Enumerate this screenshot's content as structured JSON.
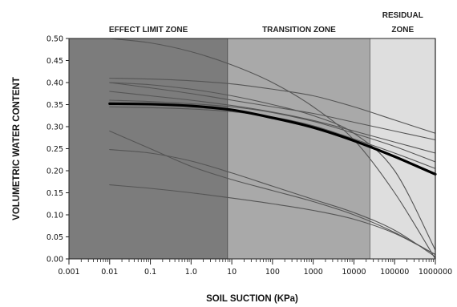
{
  "chart_data": {
    "type": "line",
    "xscale": "log",
    "xlim": [
      0.001,
      1000000
    ],
    "ylim": [
      0.0,
      0.5
    ],
    "xlabel": "SOIL SUCTION (KPa)",
    "ylabel": "VOLUMETRIC WATER CONTENT",
    "x_tick_labels": [
      "0.001",
      "0.01",
      "0.1",
      "1.0",
      "10",
      "100",
      "1000",
      "10000",
      "100000",
      "1000000"
    ],
    "x_ticks": [
      0.001,
      0.01,
      0.1,
      1,
      10,
      100,
      1000,
      10000,
      100000,
      1000000
    ],
    "y_tick_labels": [
      "0.00",
      "0.05",
      "0.10",
      "0.15",
      "0.20",
      "0.25",
      "0.30",
      "0.35",
      "0.40",
      "0.45",
      "0.50"
    ],
    "y_ticks": [
      0,
      0.05,
      0.1,
      0.15,
      0.2,
      0.25,
      0.3,
      0.35,
      0.4,
      0.45,
      0.5
    ],
    "zones": [
      {
        "label": "EFFECT LIMIT ZONE",
        "x_from": 0.001,
        "x_to": 8,
        "color": "#7c7c7c"
      },
      {
        "label": "TRANSITION ZONE",
        "x_from": 8,
        "x_to": 25000,
        "color": "#a9a9a9"
      },
      {
        "label": "RESIDUAL ZONE",
        "x_from": 25000,
        "x_to": 1000000,
        "color": "#dedede"
      }
    ],
    "series": [
      {
        "x": [
          0.01,
          0.1,
          1,
          10,
          100,
          1000,
          10000,
          100000,
          1000000
        ],
        "y": [
          0.352,
          0.351,
          0.347,
          0.338,
          0.32,
          0.298,
          0.268,
          0.232,
          0.192
        ],
        "color": "#000000",
        "width": 3.2
      },
      {
        "x": [
          0.01,
          0.1,
          1,
          10,
          100,
          1000,
          10000,
          100000,
          1000000
        ],
        "y": [
          0.5,
          0.49,
          0.47,
          0.44,
          0.4,
          0.345,
          0.27,
          0.15,
          0.0
        ],
        "color": "#555555",
        "width": 1.1
      },
      {
        "x": [
          0.01,
          0.1,
          1,
          10,
          100,
          1000,
          10000,
          100000,
          1000000
        ],
        "y": [
          0.41,
          0.408,
          0.404,
          0.397,
          0.385,
          0.37,
          0.345,
          0.315,
          0.285
        ],
        "color": "#555555",
        "width": 1.1
      },
      {
        "x": [
          0.01,
          0.1,
          1,
          10,
          100,
          1000,
          10000,
          100000,
          1000000
        ],
        "y": [
          0.4,
          0.388,
          0.375,
          0.36,
          0.345,
          0.33,
          0.31,
          0.29,
          0.27
        ],
        "color": "#555555",
        "width": 1.1
      },
      {
        "x": [
          0.01,
          0.1,
          1,
          10,
          100,
          1000,
          10000,
          100000,
          1000000
        ],
        "y": [
          0.36,
          0.357,
          0.352,
          0.345,
          0.332,
          0.312,
          0.285,
          0.255,
          0.22
        ],
        "color": "#555555",
        "width": 1.1
      },
      {
        "x": [
          0.01,
          0.1,
          1,
          10,
          100,
          1000,
          10000,
          100000,
          1000000
        ],
        "y": [
          0.345,
          0.343,
          0.34,
          0.334,
          0.322,
          0.302,
          0.272,
          0.24,
          0.205
        ],
        "color": "#555555",
        "width": 1.1
      },
      {
        "x": [
          0.01,
          0.1,
          1,
          10,
          100,
          1000,
          10000,
          100000,
          1000000
        ],
        "y": [
          0.38,
          0.37,
          0.36,
          0.348,
          0.333,
          0.314,
          0.29,
          0.265,
          0.24
        ],
        "color": "#555555",
        "width": 1.1
      },
      {
        "x": [
          0.01,
          0.1,
          1,
          10,
          100,
          1000,
          10000,
          100000,
          1000000
        ],
        "y": [
          0.29,
          0.25,
          0.21,
          0.18,
          0.155,
          0.13,
          0.1,
          0.06,
          0.01
        ],
        "color": "#555555",
        "width": 1.1
      },
      {
        "x": [
          0.01,
          0.1,
          1,
          10,
          100,
          1000,
          10000,
          100000,
          1000000
        ],
        "y": [
          0.248,
          0.24,
          0.222,
          0.195,
          0.165,
          0.135,
          0.105,
          0.065,
          0.005
        ],
        "color": "#555555",
        "width": 1.1
      },
      {
        "x": [
          0.01,
          0.1,
          1,
          10,
          100,
          1000,
          10000,
          100000,
          1000000
        ],
        "y": [
          0.168,
          0.16,
          0.15,
          0.138,
          0.125,
          0.11,
          0.09,
          0.058,
          0.01
        ],
        "color": "#555555",
        "width": 1.1
      },
      {
        "x": [
          0.01,
          0.1,
          1,
          10,
          100,
          1000,
          10000,
          100000,
          1000000
        ],
        "y": [
          0.4,
          0.395,
          0.385,
          0.37,
          0.35,
          0.325,
          0.285,
          0.2,
          0.02
        ],
        "color": "#555555",
        "width": 1.1
      }
    ]
  }
}
